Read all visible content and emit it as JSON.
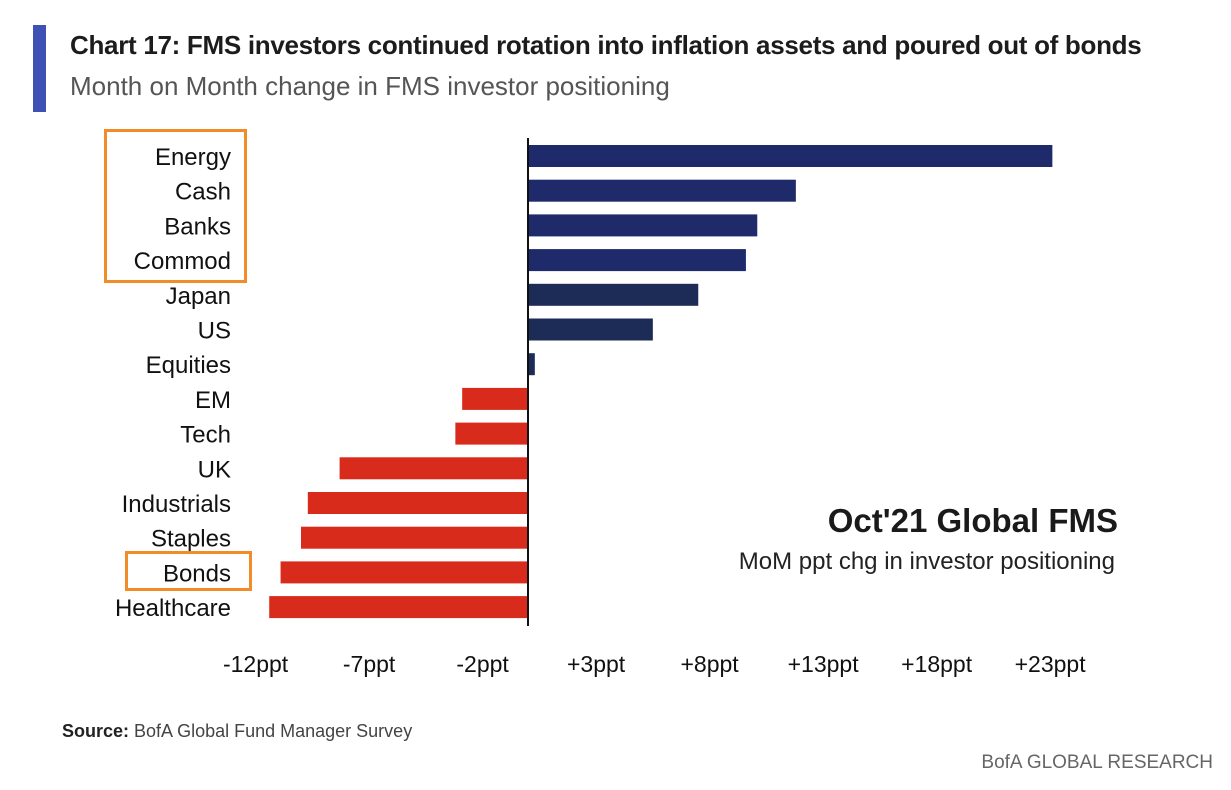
{
  "header": {
    "title": "Chart 17: FMS investors continued rotation into inflation assets and poured out of bonds",
    "subtitle": "Month on Month change in FMS investor positioning"
  },
  "annotation": {
    "title": "Oct'21 Global FMS",
    "subtitle": "MoM ppt chg in investor positioning"
  },
  "footer": {
    "source_label": "Source:",
    "source_text": " BofA Global Fund Manager Survey",
    "brand": "BofA GLOBAL RESEARCH"
  },
  "colors": {
    "positive_top": "#1f2a6b",
    "positive_regional": "#1d2b57",
    "negative": "#d92b1c",
    "highlight": "#f28c28",
    "accent": "#3f51b5"
  },
  "highlighted_categories": [
    "Energy",
    "Cash",
    "Banks",
    "Commod",
    "Bonds"
  ],
  "chart_data": {
    "type": "bar",
    "orientation": "horizontal",
    "categories": [
      "Energy",
      "Cash",
      "Banks",
      "Commod",
      "Japan",
      "US",
      "Equities",
      "EM",
      "Tech",
      "UK",
      "Industrials",
      "Staples",
      "Bonds",
      "Healthcare"
    ],
    "values": [
      23.1,
      11.8,
      10.1,
      9.6,
      7.5,
      5.5,
      0.3,
      -2.9,
      -3.2,
      -8.3,
      -9.7,
      -10.0,
      -10.9,
      -11.4
    ],
    "xlim": [
      -12,
      25
    ],
    "xticks": [
      -12,
      -7,
      -2,
      3,
      8,
      13,
      18,
      23
    ],
    "xtick_labels": [
      "-12ppt",
      "-7ppt",
      "-2ppt",
      "+3ppt",
      "+8ppt",
      "+13ppt",
      "+18ppt",
      "+23ppt"
    ],
    "grid": false,
    "legend": "none"
  }
}
